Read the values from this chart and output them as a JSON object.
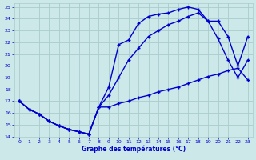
{
  "xlabel": "Graphe des températures (°C)",
  "bg_color": "#cce8e8",
  "grid_color": "#aacccc",
  "line_color": "#0000cc",
  "xlim": [
    -0.5,
    23.5
  ],
  "ylim": [
    14,
    25.3
  ],
  "xticks": [
    0,
    1,
    2,
    3,
    4,
    5,
    6,
    7,
    8,
    9,
    10,
    11,
    12,
    13,
    14,
    15,
    16,
    17,
    18,
    19,
    20,
    21,
    22,
    23
  ],
  "yticks": [
    14,
    15,
    16,
    17,
    18,
    19,
    20,
    21,
    22,
    23,
    24,
    25
  ],
  "curve1_x": [
    0,
    1,
    2,
    3,
    4,
    5,
    6,
    7,
    8,
    9,
    10,
    11,
    12,
    13,
    14,
    15,
    16,
    17,
    18,
    19,
    20,
    21,
    22,
    23
  ],
  "curve1_y": [
    17.0,
    16.3,
    15.9,
    15.3,
    14.9,
    14.6,
    14.4,
    14.2,
    16.5,
    18.2,
    21.8,
    22.2,
    23.6,
    24.2,
    24.4,
    24.5,
    24.8,
    25.0,
    24.8,
    23.8,
    22.3,
    20.5,
    19.0,
    20.5
  ],
  "curve2_x": [
    0,
    1,
    2,
    3,
    4,
    5,
    6,
    7,
    8,
    9,
    10,
    11,
    12,
    13,
    14,
    15,
    16,
    17,
    18,
    19,
    20,
    21,
    22,
    23
  ],
  "curve2_y": [
    17.0,
    16.3,
    15.9,
    15.3,
    14.9,
    14.6,
    14.4,
    14.2,
    16.5,
    17.5,
    19.0,
    20.5,
    21.5,
    22.5,
    23.0,
    23.5,
    23.8,
    24.2,
    24.5,
    23.8,
    23.8,
    22.5,
    20.0,
    22.5
  ],
  "curve3_x": [
    0,
    1,
    2,
    3,
    4,
    5,
    6,
    7,
    8,
    9,
    10,
    11,
    12,
    13,
    14,
    15,
    16,
    17,
    18,
    19,
    20,
    21,
    22,
    23
  ],
  "curve3_y": [
    17.0,
    16.3,
    15.9,
    15.3,
    14.9,
    14.6,
    14.4,
    14.2,
    16.5,
    16.5,
    16.8,
    17.0,
    17.3,
    17.5,
    17.8,
    18.0,
    18.2,
    18.5,
    18.8,
    19.1,
    19.3,
    19.6,
    19.8,
    18.8
  ],
  "markersize": 3,
  "linewidth": 1.0
}
